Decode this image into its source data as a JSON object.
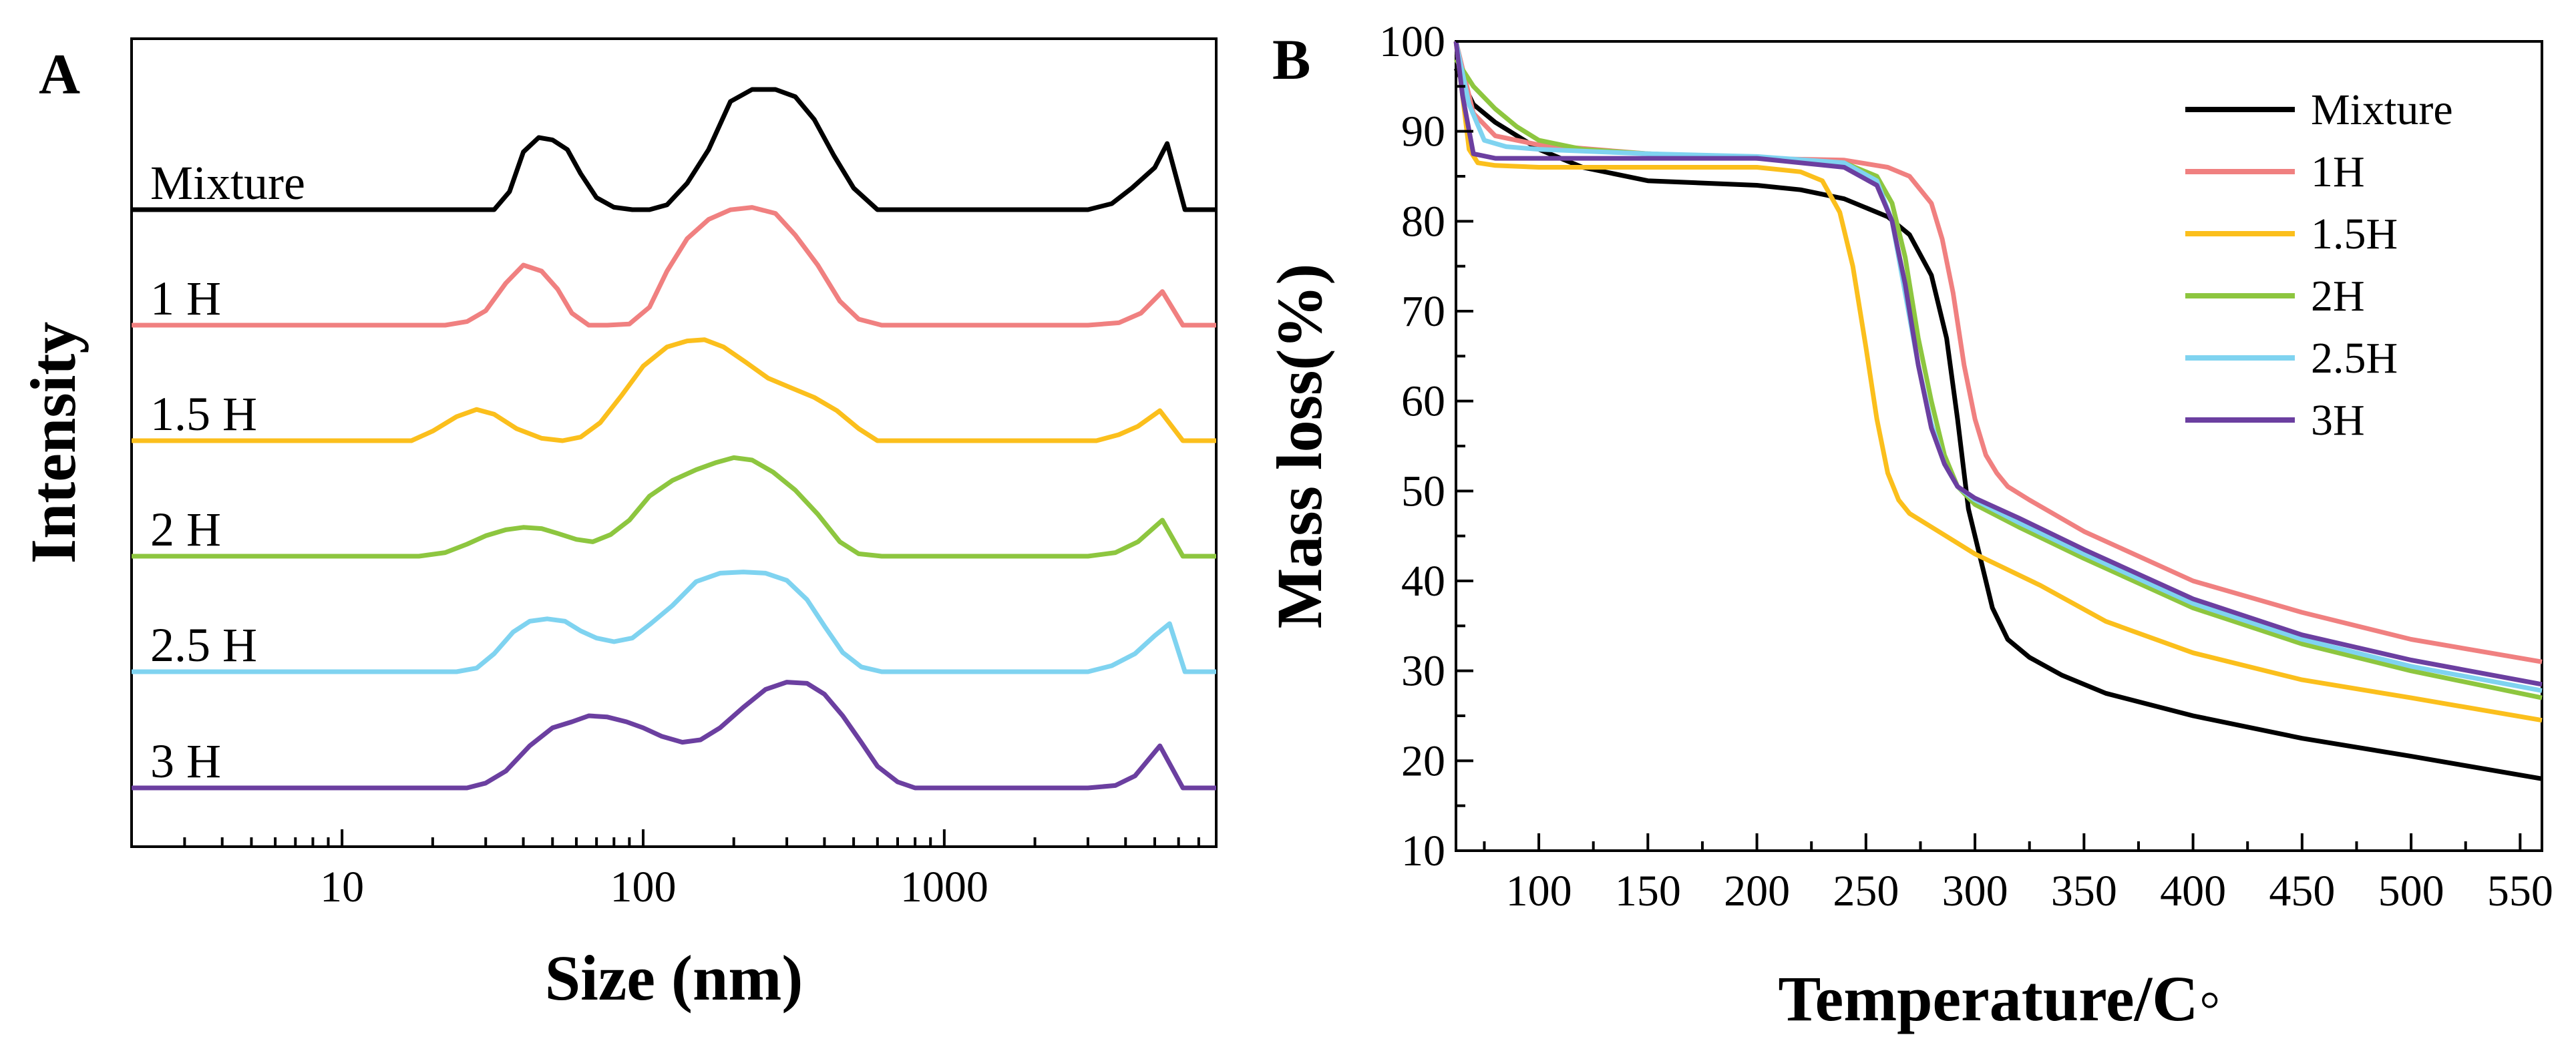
{
  "panels": {
    "a": {
      "letter": "A"
    },
    "b": {
      "letter": "B"
    }
  },
  "chart_data": [
    {
      "type": "line",
      "title": "",
      "xlabel": "Size (nm)",
      "ylabel": "Intensity",
      "xscale": "log",
      "xlim": [
        2,
        8000
      ],
      "xticks": [
        10,
        100,
        1000
      ],
      "xtick_labels": [
        "10",
        "100",
        "1000"
      ],
      "y_offset_curves": true,
      "series": [
        {
          "name": "Mixture",
          "label": "Mixture",
          "color": "#000000",
          "x": [
            2,
            32,
            36,
            40,
            45,
            50,
            56,
            62,
            70,
            80,
            92,
            105,
            120,
            140,
            165,
            195,
            230,
            275,
            320,
            370,
            430,
            500,
            600,
            3000,
            3600,
            4200,
            5000,
            5500,
            6300,
            8000
          ],
          "y": [
            0,
            0,
            0.15,
            0.48,
            0.6,
            0.58,
            0.5,
            0.3,
            0.1,
            0.02,
            0,
            0,
            0.04,
            0.22,
            0.5,
            0.9,
            1.0,
            1.0,
            0.94,
            0.75,
            0.45,
            0.18,
            0,
            0,
            0.05,
            0.18,
            0.35,
            0.55,
            0,
            0
          ]
        },
        {
          "name": "1 H",
          "label": "1 H",
          "color": "#F08080",
          "x": [
            2,
            22,
            26,
            30,
            35,
            40,
            46,
            52,
            58,
            66,
            76,
            90,
            105,
            120,
            140,
            165,
            195,
            230,
            275,
            320,
            380,
            450,
            520,
            620,
            3000,
            3800,
            4500,
            5300,
            6200,
            8000
          ],
          "y": [
            0,
            0,
            0.03,
            0.12,
            0.35,
            0.5,
            0.45,
            0.3,
            0.1,
            0.0,
            0.0,
            0.01,
            0.15,
            0.45,
            0.72,
            0.88,
            0.96,
            0.98,
            0.93,
            0.75,
            0.5,
            0.2,
            0.05,
            0,
            0,
            0.02,
            0.1,
            0.28,
            0,
            0
          ]
        },
        {
          "name": "1.5 H",
          "label": "1.5 H",
          "color": "#FBBF1C",
          "x": [
            2,
            17,
            20,
            24,
            28,
            32,
            38,
            46,
            54,
            62,
            72,
            85,
            100,
            120,
            140,
            160,
            185,
            220,
            260,
            310,
            370,
            440,
            520,
            600,
            3200,
            3800,
            4400,
            5200,
            6200,
            8000
          ],
          "y": [
            0,
            0,
            0.08,
            0.2,
            0.26,
            0.22,
            0.1,
            0.02,
            0.0,
            0.03,
            0.15,
            0.38,
            0.62,
            0.78,
            0.83,
            0.84,
            0.78,
            0.65,
            0.52,
            0.44,
            0.36,
            0.25,
            0.1,
            0,
            0,
            0.05,
            0.12,
            0.25,
            0,
            0
          ]
        },
        {
          "name": "2 H",
          "label": "2 H",
          "color": "#8DC63F",
          "x": [
            2,
            18,
            22,
            26,
            30,
            35,
            40,
            46,
            52,
            60,
            68,
            78,
            90,
            105,
            125,
            150,
            175,
            200,
            230,
            270,
            320,
            380,
            450,
            520,
            620,
            3000,
            3700,
            4400,
            5300,
            6200,
            8000
          ],
          "y": [
            0,
            0,
            0.03,
            0.1,
            0.17,
            0.22,
            0.24,
            0.23,
            0.19,
            0.14,
            0.12,
            0.18,
            0.3,
            0.5,
            0.63,
            0.72,
            0.78,
            0.82,
            0.8,
            0.7,
            0.55,
            0.35,
            0.12,
            0.02,
            0,
            0,
            0.03,
            0.12,
            0.3,
            0,
            0
          ]
        },
        {
          "name": "2.5 H",
          "label": "2.5 H",
          "color": "#7FD3F0",
          "x": [
            2,
            24,
            28,
            32,
            37,
            42,
            48,
            55,
            62,
            70,
            80,
            92,
            106,
            125,
            150,
            180,
            215,
            255,
            300,
            350,
            400,
            460,
            530,
            620,
            3000,
            3600,
            4300,
            5000,
            5600,
            6300,
            8000
          ],
          "y": [
            0,
            0,
            0.03,
            0.15,
            0.33,
            0.42,
            0.44,
            0.42,
            0.34,
            0.28,
            0.25,
            0.28,
            0.4,
            0.55,
            0.75,
            0.82,
            0.83,
            0.82,
            0.76,
            0.6,
            0.38,
            0.16,
            0.04,
            0,
            0,
            0.05,
            0.15,
            0.3,
            0.4,
            0,
            0
          ]
        },
        {
          "name": "3 H",
          "label": "3 H",
          "color": "#6B3FA0",
          "x": [
            2,
            26,
            30,
            35,
            42,
            50,
            58,
            66,
            76,
            88,
            100,
            115,
            135,
            155,
            180,
            215,
            255,
            300,
            350,
            400,
            460,
            530,
            600,
            700,
            800,
            3000,
            3700,
            4300,
            5200,
            6200,
            8000
          ],
          "y": [
            0,
            0,
            0.04,
            0.14,
            0.35,
            0.5,
            0.55,
            0.6,
            0.59,
            0.55,
            0.5,
            0.43,
            0.38,
            0.4,
            0.5,
            0.67,
            0.82,
            0.88,
            0.87,
            0.78,
            0.6,
            0.38,
            0.18,
            0.05,
            0,
            0,
            0.02,
            0.1,
            0.35,
            0,
            0
          ]
        }
      ]
    },
    {
      "type": "line",
      "title": "",
      "xlabel": "Temperature/C◦",
      "ylabel": "Mass  loss(%)",
      "xlim": [
        62,
        560
      ],
      "ylim": [
        10,
        100
      ],
      "xticks": [
        100,
        150,
        200,
        250,
        300,
        350,
        400,
        450,
        500,
        550
      ],
      "xtick_labels": [
        "100",
        "150",
        "200",
        "250",
        "300",
        "350",
        "400",
        "450",
        "500",
        "550"
      ],
      "yticks": [
        10,
        20,
        30,
        40,
        50,
        60,
        70,
        80,
        90,
        100
      ],
      "ytick_labels": [
        "10",
        "20",
        "30",
        "40",
        "50",
        "60",
        "70",
        "80",
        "90",
        "100"
      ],
      "legend_position": "top-right",
      "series": [
        {
          "name": "Mixture",
          "label": "Mixture",
          "color": "#000000",
          "x": [
            62,
            70,
            80,
            100,
            120,
            150,
            200,
            220,
            240,
            260,
            270,
            280,
            287,
            292,
            297,
            303,
            308,
            315,
            325,
            340,
            360,
            400,
            450,
            500,
            560
          ],
          "y": [
            97,
            93,
            91,
            88,
            86,
            84.5,
            84,
            83.5,
            82.5,
            80.5,
            78.5,
            74,
            67,
            58,
            48,
            42,
            37,
            33.5,
            31.5,
            29.5,
            27.5,
            25,
            22.5,
            20.5,
            18
          ]
        },
        {
          "name": "1H",
          "label": "1H",
          "color": "#F08080",
          "x": [
            62,
            66,
            70,
            80,
            100,
            150,
            200,
            240,
            260,
            270,
            280,
            285,
            290,
            295,
            300,
            305,
            310,
            315,
            325,
            350,
            400,
            450,
            500,
            560
          ],
          "y": [
            100,
            96,
            92,
            89.5,
            88.5,
            87.5,
            87,
            86.8,
            86,
            85,
            82,
            78,
            72,
            64,
            58,
            54,
            52,
            50.5,
            49,
            45.5,
            40,
            36.5,
            33.5,
            31
          ]
        },
        {
          "name": "1.5H",
          "label": "1.5H",
          "color": "#FBBF1C",
          "x": [
            62,
            65,
            68,
            72,
            80,
            100,
            150,
            200,
            220,
            230,
            238,
            244,
            250,
            255,
            260,
            265,
            270,
            280,
            300,
            330,
            360,
            400,
            450,
            500,
            560
          ],
          "y": [
            100,
            94,
            88,
            86.5,
            86.2,
            86,
            86,
            86,
            85.5,
            84.5,
            81,
            75,
            66,
            58,
            52,
            49,
            47.5,
            46,
            43,
            39.5,
            35.5,
            32,
            29,
            27,
            24.5
          ]
        },
        {
          "name": "2H",
          "label": "2H",
          "color": "#8DC63F",
          "x": [
            62,
            70,
            80,
            90,
            100,
            120,
            150,
            200,
            240,
            255,
            262,
            268,
            274,
            280,
            286,
            292,
            300,
            320,
            350,
            400,
            450,
            500,
            560
          ],
          "y": [
            98,
            95,
            92.5,
            90.5,
            89,
            88,
            87.5,
            87,
            86.5,
            85,
            82,
            76,
            67,
            60,
            54,
            50.5,
            48.5,
            46,
            42.5,
            37,
            33,
            30,
            27
          ]
        },
        {
          "name": "2.5H",
          "label": "2.5H",
          "color": "#7FD3F0",
          "x": [
            62,
            68,
            75,
            85,
            100,
            150,
            200,
            240,
            255,
            262,
            268,
            274,
            280,
            286,
            292,
            300,
            320,
            350,
            400,
            450,
            500,
            560
          ],
          "y": [
            100,
            93,
            89,
            88.3,
            88,
            87.5,
            87.2,
            86.5,
            84.5,
            80,
            72,
            64,
            57.5,
            53,
            50.5,
            49,
            46.5,
            43,
            37.5,
            33.5,
            30.5,
            27.8
          ]
        },
        {
          "name": "3H",
          "label": "3H",
          "color": "#6B3FA0",
          "x": [
            62,
            65,
            70,
            80,
            100,
            150,
            200,
            240,
            255,
            262,
            268,
            274,
            280,
            286,
            292,
            300,
            320,
            350,
            400,
            450,
            500,
            560
          ],
          "y": [
            100,
            94,
            87.5,
            87,
            87,
            87,
            87,
            86,
            84,
            80,
            73,
            64,
            57,
            53,
            50.5,
            49.2,
            47,
            43.5,
            38,
            34,
            31.2,
            28.5
          ]
        }
      ]
    }
  ]
}
